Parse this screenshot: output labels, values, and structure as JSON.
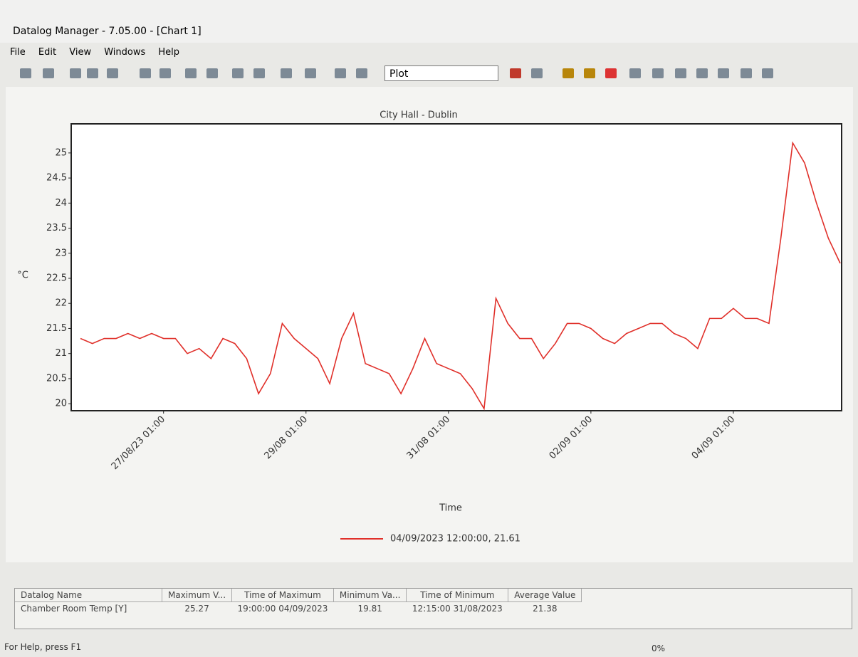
{
  "window": {
    "title": "Datalog Manager - 7.05.00 - [Chart 1]",
    "menu": [
      "File",
      "Edit",
      "View",
      "Windows",
      "Help"
    ],
    "toolbar_dropdown": "Plot"
  },
  "chart_data": {
    "type": "line",
    "title": "City Hall - Dublin",
    "x_label": "Time",
    "y_label": "°C",
    "categories": [
      null,
      null,
      null,
      null,
      null,
      null,
      null,
      "27/08/23 01:00",
      null,
      null,
      null,
      null,
      null,
      null,
      null,
      null,
      null,
      null,
      null,
      "29/08 01:00",
      null,
      null,
      null,
      null,
      null,
      null,
      null,
      null,
      null,
      null,
      null,
      "31/08 01:00",
      null,
      null,
      null,
      null,
      null,
      null,
      null,
      null,
      null,
      null,
      null,
      "02/09 01:00",
      null,
      null,
      null,
      null,
      null,
      null,
      null,
      null,
      null,
      null,
      null,
      "04/09 01:00",
      null,
      null,
      null,
      null,
      null,
      null,
      null,
      null,
      null
    ],
    "series": [
      {
        "name": "04/09/2023 12:00:00, 21.61",
        "color": "#e0302a",
        "values": [
          21.3,
          21.2,
          21.3,
          21.3,
          21.4,
          21.3,
          21.4,
          21.3,
          21.3,
          21.0,
          21.1,
          20.9,
          21.3,
          21.2,
          20.9,
          20.2,
          20.6,
          21.6,
          21.3,
          21.1,
          20.9,
          20.4,
          21.3,
          21.8,
          20.8,
          20.7,
          20.6,
          20.2,
          20.7,
          21.3,
          20.8,
          20.7,
          20.6,
          20.3,
          19.9,
          22.1,
          21.6,
          21.3,
          21.3,
          20.9,
          21.2,
          21.6,
          21.6,
          21.5,
          21.3,
          21.2,
          21.4,
          21.5,
          21.6,
          21.6,
          21.4,
          21.3,
          21.1,
          21.7,
          21.7,
          21.9,
          21.7,
          21.7,
          21.6,
          23.3,
          25.2,
          24.8,
          24.0,
          23.3,
          22.8
        ]
      }
    ],
    "ylim": [
      19.86,
      25.58
    ],
    "yticks": [
      20,
      20.5,
      21,
      21.5,
      22,
      22.5,
      23,
      23.5,
      24,
      24.5,
      25
    ],
    "grid": false,
    "legend": "bottom"
  },
  "table": {
    "header": [
      "Datalog Name",
      "Maximum V...",
      "Time of Maximum",
      "Minimum Va...",
      "Time of Minimum",
      "Average Value"
    ],
    "rows": [
      [
        "Chamber Room Temp [Y]",
        "25.27",
        "19:00:00 04/09/2023",
        "19.81",
        "12:15:00 31/08/2023",
        "21.38"
      ]
    ]
  },
  "status": {
    "help": "For Help, press F1",
    "progress": "0%"
  }
}
